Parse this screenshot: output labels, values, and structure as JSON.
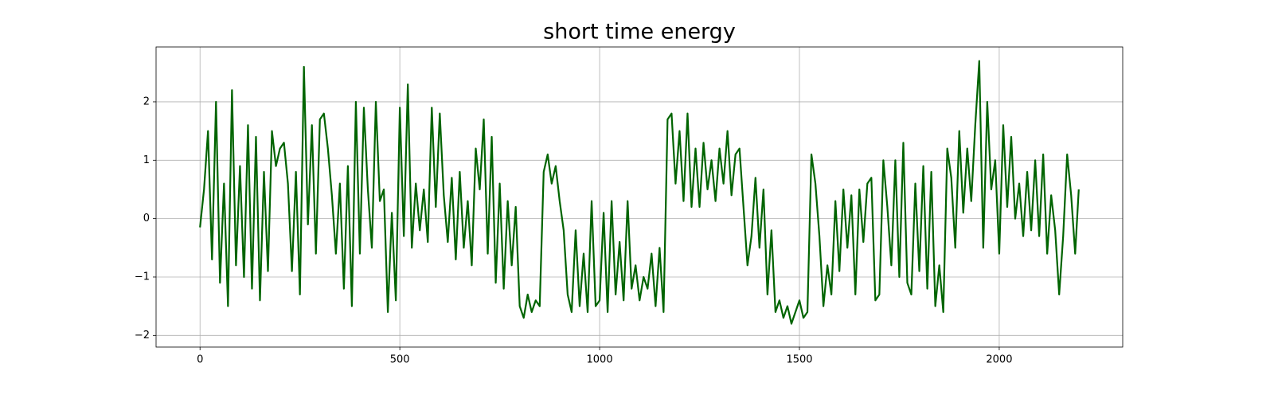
{
  "chart_data": {
    "type": "line",
    "title": "short time energy",
    "x": [
      0,
      10,
      20,
      30,
      40,
      50,
      60,
      70,
      80,
      90,
      100,
      110,
      120,
      130,
      140,
      150,
      160,
      170,
      180,
      190,
      200,
      210,
      220,
      230,
      240,
      250,
      260,
      270,
      280,
      290,
      300,
      310,
      320,
      330,
      340,
      350,
      360,
      370,
      380,
      390,
      400,
      410,
      420,
      430,
      440,
      450,
      460,
      470,
      480,
      490,
      500,
      510,
      520,
      530,
      540,
      550,
      560,
      570,
      580,
      590,
      600,
      610,
      620,
      630,
      640,
      650,
      660,
      670,
      680,
      690,
      700,
      710,
      720,
      730,
      740,
      750,
      760,
      770,
      780,
      790,
      800,
      810,
      820,
      830,
      840,
      850,
      860,
      870,
      880,
      890,
      900,
      910,
      920,
      930,
      940,
      950,
      960,
      970,
      980,
      990,
      1000,
      1010,
      1020,
      1030,
      1040,
      1050,
      1060,
      1070,
      1080,
      1090,
      1100,
      1110,
      1120,
      1130,
      1140,
      1150,
      1160,
      1170,
      1180,
      1190,
      1200,
      1210,
      1220,
      1230,
      1240,
      1250,
      1260,
      1270,
      1280,
      1290,
      1300,
      1310,
      1320,
      1330,
      1340,
      1350,
      1360,
      1370,
      1380,
      1390,
      1400,
      1410,
      1420,
      1430,
      1440,
      1450,
      1460,
      1470,
      1480,
      1490,
      1500,
      1510,
      1520,
      1530,
      1540,
      1550,
      1560,
      1570,
      1580,
      1590,
      1600,
      1610,
      1620,
      1630,
      1640,
      1650,
      1660,
      1670,
      1680,
      1690,
      1700,
      1710,
      1720,
      1730,
      1740,
      1750,
      1760,
      1770,
      1780,
      1790,
      1800,
      1810,
      1820,
      1830,
      1840,
      1850,
      1860,
      1870,
      1880,
      1890,
      1900,
      1910,
      1920,
      1930,
      1940,
      1950,
      1960,
      1970,
      1980,
      1990,
      2000,
      2010,
      2020,
      2030,
      2040,
      2050,
      2060,
      2070,
      2080,
      2090,
      2100,
      2110,
      2120,
      2130,
      2140,
      2150,
      2160,
      2170,
      2180,
      2190,
      2199
    ],
    "series": [
      {
        "color": "#006400",
        "values": [
          -0.15,
          0.5,
          1.5,
          -0.7,
          2.0,
          -1.1,
          0.6,
          -1.5,
          2.2,
          -0.8,
          0.9,
          -1.0,
          1.6,
          -1.2,
          1.4,
          -1.4,
          0.8,
          -0.9,
          1.5,
          0.9,
          1.2,
          1.3,
          0.6,
          -0.9,
          0.8,
          -1.3,
          2.6,
          -0.1,
          1.6,
          -0.6,
          1.7,
          1.8,
          1.2,
          0.4,
          -0.6,
          0.6,
          -1.2,
          0.9,
          -1.5,
          2.0,
          -0.6,
          1.9,
          0.5,
          -0.5,
          2.0,
          0.3,
          0.5,
          -1.6,
          0.1,
          -1.4,
          1.9,
          -0.3,
          2.3,
          -0.5,
          0.6,
          -0.2,
          0.5,
          -0.4,
          1.9,
          0.2,
          1.8,
          0.4,
          -0.4,
          0.7,
          -0.7,
          0.8,
          -0.5,
          0.3,
          -0.8,
          1.2,
          0.5,
          1.7,
          -0.6,
          1.4,
          -1.1,
          0.6,
          -1.2,
          0.3,
          -0.8,
          0.2,
          -1.5,
          -1.7,
          -1.3,
          -1.6,
          -1.4,
          -1.5,
          0.8,
          1.1,
          0.6,
          0.9,
          0.3,
          -0.2,
          -1.3,
          -1.6,
          -0.2,
          -1.5,
          -0.6,
          -1.6,
          0.3,
          -1.5,
          -1.4,
          0.1,
          -1.6,
          0.3,
          -1.3,
          -0.4,
          -1.4,
          0.3,
          -1.2,
          -0.8,
          -1.4,
          -1.0,
          -1.2,
          -0.6,
          -1.5,
          -0.5,
          -1.6,
          1.7,
          1.8,
          0.6,
          1.5,
          0.3,
          1.8,
          0.2,
          1.2,
          0.2,
          1.3,
          0.5,
          1.0,
          0.3,
          1.2,
          0.6,
          1.5,
          0.4,
          1.1,
          1.2,
          0.2,
          -0.8,
          -0.3,
          0.7,
          -0.5,
          0.5,
          -1.3,
          -0.2,
          -1.6,
          -1.4,
          -1.7,
          -1.5,
          -1.8,
          -1.6,
          -1.4,
          -1.7,
          -1.6,
          1.1,
          0.6,
          -0.3,
          -1.5,
          -0.8,
          -1.3,
          0.3,
          -0.9,
          0.5,
          -0.5,
          0.4,
          -1.3,
          0.5,
          -0.4,
          0.6,
          0.7,
          -1.4,
          -1.3,
          1.0,
          0.2,
          -0.8,
          1.0,
          -1.0,
          1.3,
          -1.1,
          -1.3,
          0.6,
          -0.9,
          0.9,
          -1.2,
          0.8,
          -1.5,
          -0.8,
          -1.6,
          1.2,
          0.7,
          -0.5,
          1.5,
          0.1,
          1.2,
          0.3,
          1.6,
          2.7,
          -0.5,
          2.0,
          0.5,
          1.0,
          -0.6,
          1.6,
          0.2,
          1.4,
          0.0,
          0.6,
          -0.3,
          0.8,
          -0.2,
          1.0,
          -0.3,
          1.1,
          -0.6,
          0.4,
          -0.2,
          -1.3,
          -0.3,
          1.1,
          0.4,
          -0.6,
          0.5
        ]
      }
    ],
    "xlim": [
      -110,
      2309
    ],
    "ylim": [
      -2.2,
      2.94
    ],
    "xticks": [
      0,
      500,
      1000,
      1500,
      2000
    ],
    "yticks": [
      {
        "value": -2,
        "label": "−2"
      },
      {
        "value": -1,
        "label": "−1"
      },
      0,
      1,
      2
    ],
    "grid": true
  }
}
